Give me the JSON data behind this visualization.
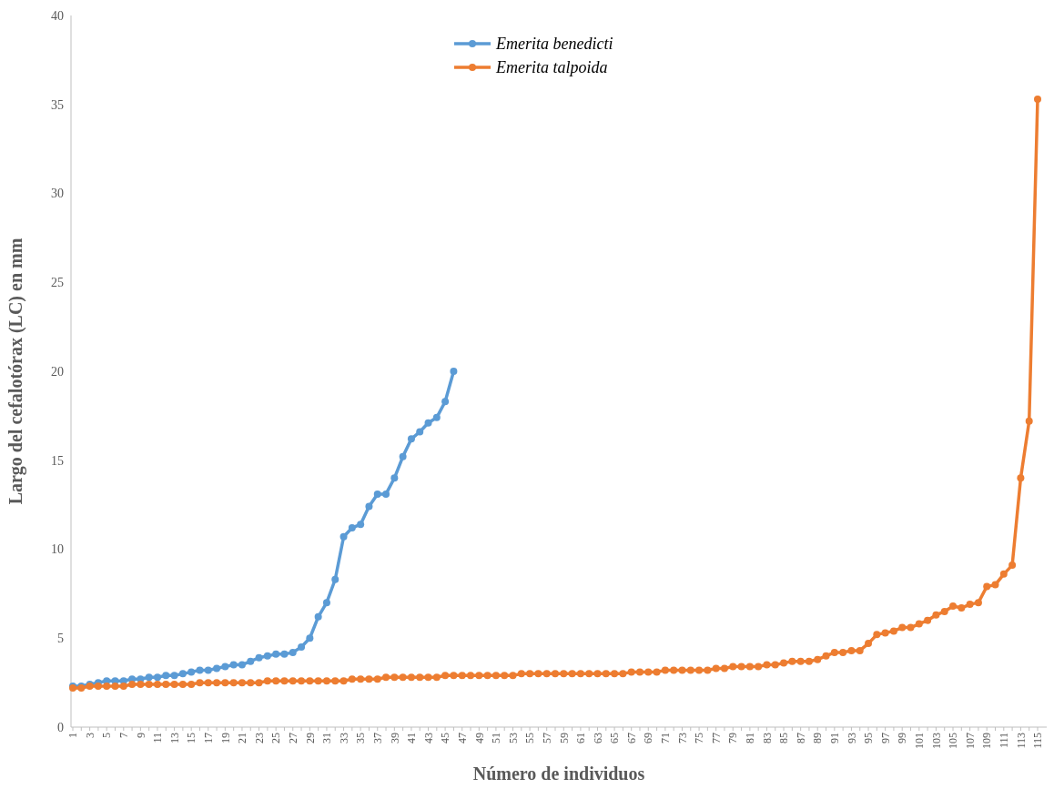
{
  "chart_data": {
    "type": "line",
    "xlabel": "Número de individuos",
    "ylabel": "Largo del cefalotórax (LC) en mm",
    "categories": [
      "1",
      null,
      "3",
      null,
      "5",
      null,
      "7",
      null,
      "9",
      null,
      "11",
      null,
      "13",
      null,
      "15",
      null,
      "17",
      null,
      "19",
      null,
      "21",
      null,
      "23",
      null,
      "25",
      null,
      "27",
      null,
      "29",
      null,
      "31",
      null,
      "33",
      null,
      "35",
      null,
      "37",
      null,
      "39",
      null,
      "41",
      null,
      "43",
      null,
      "45",
      null,
      "47",
      null,
      "49",
      null,
      "51",
      null,
      "53",
      null,
      "55",
      null,
      "57",
      null,
      "59",
      null,
      "61",
      null,
      "63",
      null,
      "65",
      null,
      "67",
      null,
      "69",
      null,
      "71",
      null,
      "73",
      null,
      "75",
      null,
      "77",
      null,
      "79",
      null,
      "81",
      null,
      "83",
      null,
      "85",
      null,
      "87",
      null,
      "89",
      null,
      "91",
      null,
      "93",
      null,
      "95",
      null,
      "97",
      null,
      "99",
      null,
      "101",
      null,
      "103",
      null,
      "105",
      null,
      "107",
      null,
      "109",
      null,
      "111",
      null,
      "113",
      null,
      "115"
    ],
    "series": [
      {
        "name": "Emerita benedicti",
        "color": "#5b9bd5",
        "values": [
          2.3,
          2.3,
          2.4,
          2.5,
          2.6,
          2.6,
          2.6,
          2.7,
          2.7,
          2.8,
          2.8,
          2.9,
          2.9,
          3.0,
          3.1,
          3.2,
          3.2,
          3.3,
          3.4,
          3.5,
          3.5,
          3.7,
          3.9,
          4.0,
          4.1,
          4.1,
          4.2,
          4.5,
          5.0,
          6.2,
          7.0,
          8.3,
          10.7,
          11.2,
          11.4,
          12.4,
          13.1,
          13.1,
          14.0,
          15.2,
          16.2,
          16.6,
          17.1,
          17.4,
          18.3,
          20.0,
          null,
          null,
          null,
          null,
          null,
          null,
          null,
          null,
          null,
          null,
          null,
          null,
          null,
          null,
          null,
          null,
          null,
          null,
          null,
          null,
          null,
          null,
          null,
          null,
          null,
          null,
          null,
          null,
          null,
          null,
          null,
          null,
          null,
          null,
          null,
          null,
          null,
          null,
          null,
          null,
          null,
          null,
          null,
          null,
          null,
          null,
          null,
          null,
          null,
          null,
          null,
          null,
          null,
          null,
          null,
          null,
          null,
          null,
          null,
          null,
          null,
          null,
          null,
          null,
          null,
          null,
          null,
          null,
          null
        ]
      },
      {
        "name": "Emerita talpoida",
        "color": "#ed7d31",
        "values": [
          2.2,
          2.2,
          2.3,
          2.3,
          2.3,
          2.3,
          2.3,
          2.4,
          2.4,
          2.4,
          2.4,
          2.4,
          2.4,
          2.4,
          2.4,
          2.5,
          2.5,
          2.5,
          2.5,
          2.5,
          2.5,
          2.5,
          2.5,
          2.6,
          2.6,
          2.6,
          2.6,
          2.6,
          2.6,
          2.6,
          2.6,
          2.6,
          2.6,
          2.7,
          2.7,
          2.7,
          2.7,
          2.8,
          2.8,
          2.8,
          2.8,
          2.8,
          2.8,
          2.8,
          2.9,
          2.9,
          2.9,
          2.9,
          2.9,
          2.9,
          2.9,
          2.9,
          2.9,
          3.0,
          3.0,
          3.0,
          3.0,
          3.0,
          3.0,
          3.0,
          3.0,
          3.0,
          3.0,
          3.0,
          3.0,
          3.0,
          3.1,
          3.1,
          3.1,
          3.1,
          3.2,
          3.2,
          3.2,
          3.2,
          3.2,
          3.2,
          3.3,
          3.3,
          3.4,
          3.4,
          3.4,
          3.4,
          3.5,
          3.5,
          3.6,
          3.7,
          3.7,
          3.7,
          3.8,
          4.0,
          4.2,
          4.2,
          4.3,
          4.3,
          4.7,
          5.2,
          5.3,
          5.4,
          5.6,
          5.6,
          5.8,
          6.0,
          6.3,
          6.5,
          6.8,
          6.7,
          6.9,
          7.0,
          7.9,
          8.0,
          8.6,
          9.1,
          14.0,
          17.2,
          35.3
        ]
      }
    ],
    "ylim": [
      0,
      40
    ],
    "yticks": [
      0,
      5,
      10,
      15,
      20,
      25,
      30,
      35,
      40
    ],
    "legend": "top",
    "marker": "circle",
    "line_style": "solid"
  }
}
